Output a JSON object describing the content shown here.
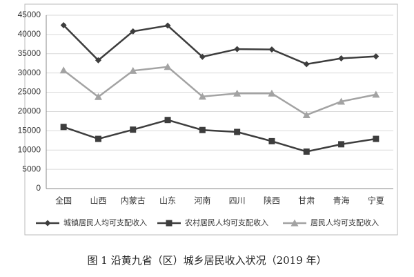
{
  "chart_data": {
    "type": "line",
    "caption": "图 1 沿黄九省（区）城乡居民收入状况（2019 年）",
    "categories": [
      "全国",
      "山西",
      "内蒙古",
      "山东",
      "河南",
      "四川",
      "陕西",
      "甘肃",
      "青海",
      "宁夏"
    ],
    "series": [
      {
        "name": "城镇居民人均可支配收入",
        "color": "#3d3d3d",
        "marker": "diamond",
        "values": [
          42400,
          33300,
          40800,
          42300,
          34200,
          36200,
          36100,
          32300,
          33800,
          34300
        ]
      },
      {
        "name": "农村居民人均可支配收入",
        "color": "#3d3d3d",
        "marker": "square",
        "values": [
          16000,
          12900,
          15300,
          17800,
          15200,
          14700,
          12300,
          9600,
          11500,
          12900
        ]
      },
      {
        "name": "居民人均可支配收入",
        "color": "#a3a3a3",
        "marker": "triangle",
        "values": [
          30700,
          23800,
          30600,
          31600,
          23900,
          24700,
          24700,
          19100,
          22600,
          24400
        ]
      }
    ],
    "ylim": [
      0,
      45000
    ],
    "yticks": [
      0,
      5000,
      10000,
      15000,
      20000,
      25000,
      30000,
      35000,
      40000,
      45000
    ],
    "grid": true,
    "legend": "bottom"
  }
}
